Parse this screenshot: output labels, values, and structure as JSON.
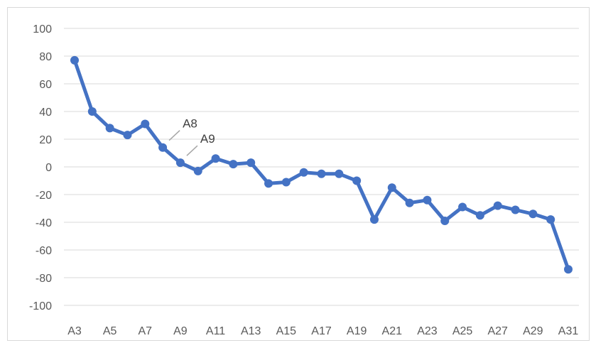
{
  "chart_data": {
    "type": "line",
    "title": "",
    "xlabel": "",
    "ylabel": "",
    "ylim": [
      -100,
      100
    ],
    "y_ticks": [
      100,
      80,
      60,
      40,
      20,
      0,
      -20,
      -40,
      -60,
      -80,
      -100
    ],
    "grid": "horizontal",
    "legend": "none",
    "series_color": "#4472c4",
    "x": [
      "A3",
      "A4",
      "A5",
      "A6",
      "A7",
      "A8",
      "A9",
      "A10",
      "A11",
      "A12",
      "A13",
      "A14",
      "A15",
      "A16",
      "A17",
      "A18",
      "A19",
      "A20",
      "A21",
      "A22",
      "A23",
      "A24",
      "A25",
      "A26",
      "A27",
      "A28",
      "A29",
      "A30",
      "A31"
    ],
    "x_tick_labels": [
      "A3",
      "A5",
      "A7",
      "A9",
      "A11",
      "A13",
      "A15",
      "A17",
      "A19",
      "A21",
      "A23",
      "A25",
      "A27",
      "A29",
      "A31"
    ],
    "series": [
      {
        "values": [
          77,
          40,
          28,
          23,
          31,
          14,
          3,
          -3,
          6,
          2,
          3,
          -12,
          -11,
          -4,
          -5,
          -5,
          -10,
          -38,
          -15,
          -26,
          -24,
          -39,
          -29,
          -35,
          -28,
          -31,
          -34,
          -38,
          -74
        ]
      }
    ],
    "annotations": [
      {
        "label": "A8",
        "x": "A8"
      },
      {
        "label": "A9",
        "x": "A9"
      }
    ]
  }
}
